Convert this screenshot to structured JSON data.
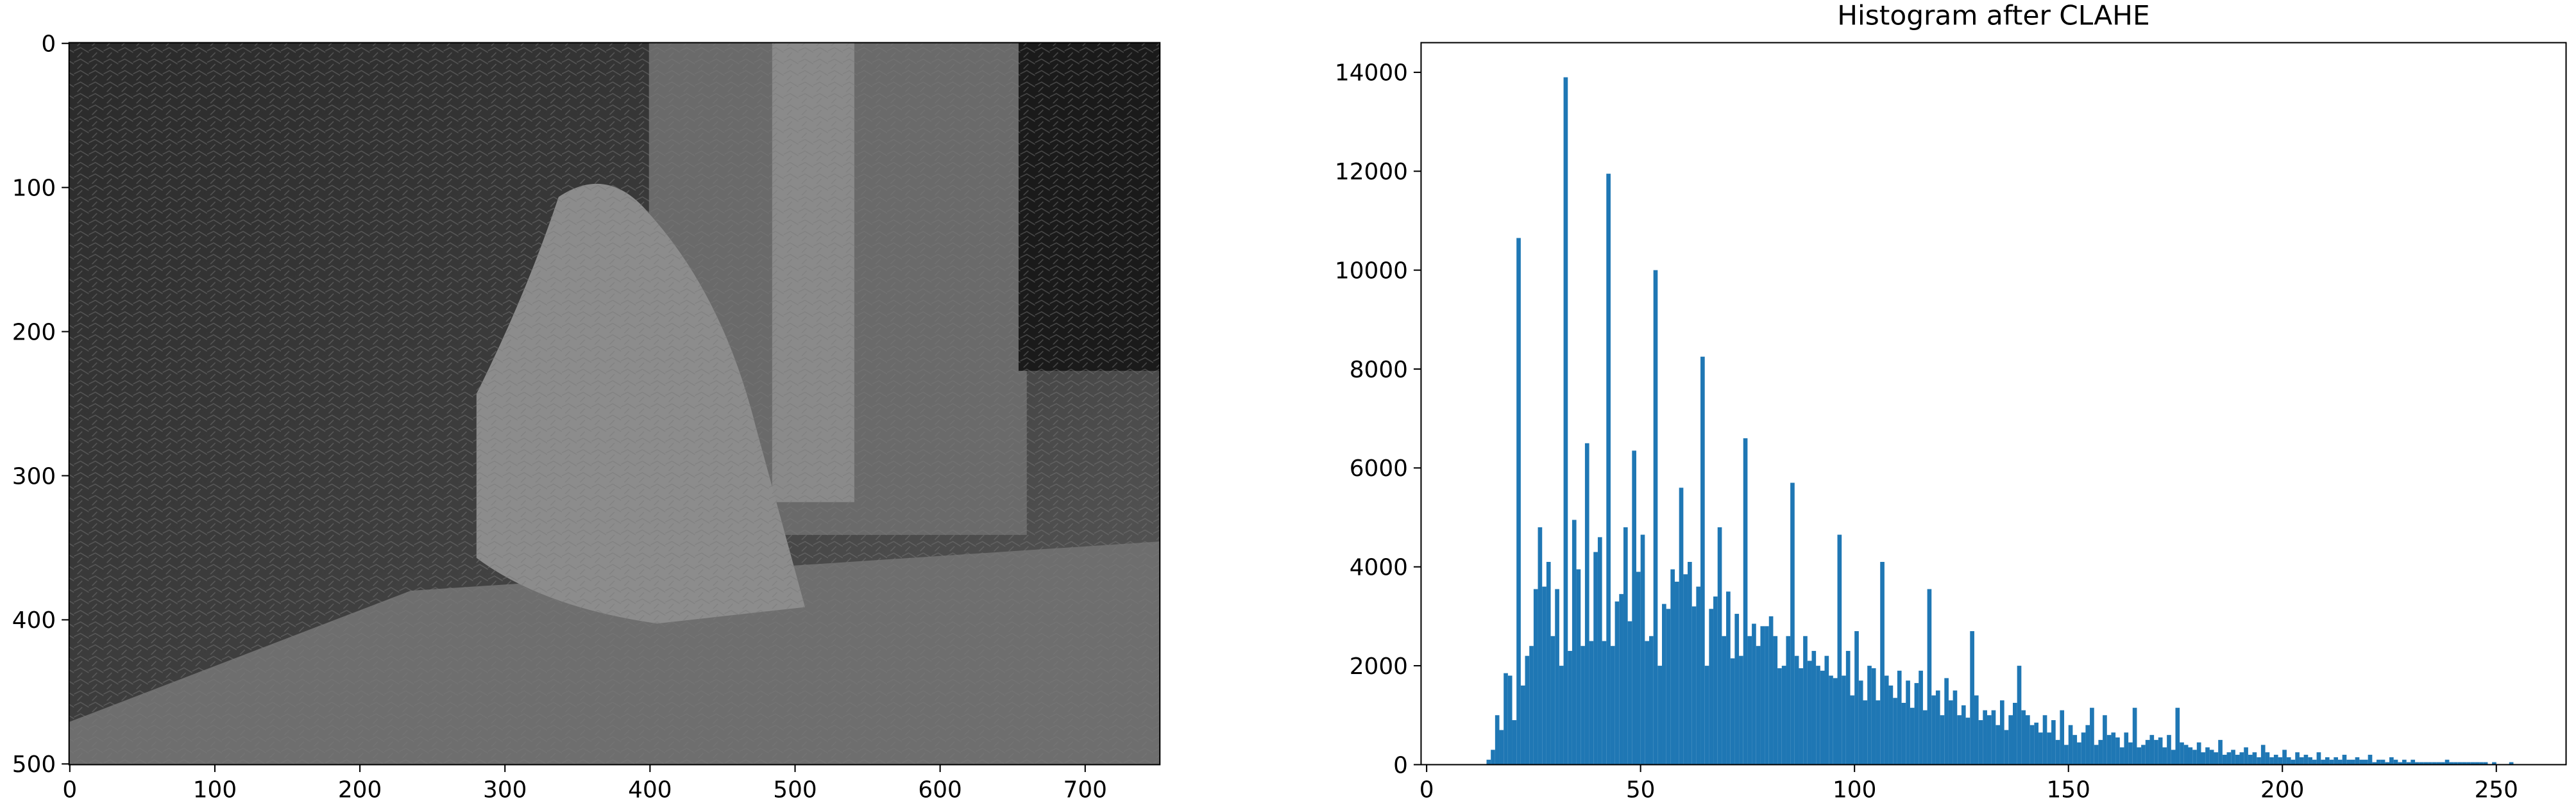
{
  "chart_data": [
    {
      "type": "image",
      "xlim": [
        -0.5,
        751.5
      ],
      "ylim": [
        500.5,
        -0.5
      ],
      "xticks": [
        0,
        100,
        200,
        300,
        400,
        500,
        600,
        700
      ],
      "yticks": [
        0,
        100,
        200,
        300,
        400,
        500
      ]
    },
    {
      "type": "histogram",
      "title": "Histogram after CLAHE",
      "color": "#1f77b4",
      "xlim": [
        -1.3,
        266.3
      ],
      "ylim": [
        0,
        14600
      ],
      "xticks": [
        0,
        50,
        100,
        150,
        200,
        250
      ],
      "yticks": [
        0,
        2000,
        4000,
        6000,
        8000,
        10000,
        12000,
        14000
      ],
      "bins": [
        0,
        1,
        2,
        3,
        4,
        5,
        6,
        7,
        8,
        9,
        10,
        11,
        12,
        13,
        14,
        15,
        16,
        17,
        18,
        19,
        20,
        21,
        22,
        23,
        24,
        25,
        26,
        27,
        28,
        29,
        30,
        31,
        32,
        33,
        34,
        35,
        36,
        37,
        38,
        39,
        40,
        41,
        42,
        43,
        44,
        45,
        46,
        47,
        48,
        49,
        50,
        51,
        52,
        53,
        54,
        55,
        56,
        57,
        58,
        59,
        60,
        61,
        62,
        63,
        64,
        65,
        66,
        67,
        68,
        69,
        70,
        71,
        72,
        73,
        74,
        75,
        76,
        77,
        78,
        79,
        80,
        81,
        82,
        83,
        84,
        85,
        86,
        87,
        88,
        89,
        90,
        91,
        92,
        93,
        94,
        95,
        96,
        97,
        98,
        99,
        100,
        101,
        102,
        103,
        104,
        105,
        106,
        107,
        108,
        109,
        110,
        111,
        112,
        113,
        114,
        115,
        116,
        117,
        118,
        119,
        120,
        121,
        122,
        123,
        124,
        125,
        126,
        127,
        128,
        129,
        130,
        131,
        132,
        133,
        134,
        135,
        136,
        137,
        138,
        139,
        140,
        141,
        142,
        143,
        144,
        145,
        146,
        147,
        148,
        149,
        150,
        151,
        152,
        153,
        154,
        155,
        156,
        157,
        158,
        159,
        160,
        161,
        162,
        163,
        164,
        165,
        166,
        167,
        168,
        169,
        170,
        171,
        172,
        173,
        174,
        175,
        176,
        177,
        178,
        179,
        180,
        181,
        182,
        183,
        184,
        185,
        186,
        187,
        188,
        189,
        190,
        191,
        192,
        193,
        194,
        195,
        196,
        197,
        198,
        199,
        200,
        201,
        202,
        203,
        204,
        205,
        206,
        207,
        208,
        209,
        210,
        211,
        212,
        213,
        214,
        215,
        216,
        217,
        218,
        219,
        220,
        221,
        222,
        223,
        224,
        225,
        226,
        227,
        228,
        229,
        230,
        231,
        232,
        233,
        234,
        235,
        236,
        237,
        238,
        239,
        240,
        241,
        242,
        243,
        244,
        245,
        246,
        247,
        248,
        249,
        250,
        251,
        252,
        253,
        254,
        255,
        256
      ],
      "counts": [
        0,
        0,
        0,
        0,
        0,
        0,
        0,
        0,
        0,
        0,
        0,
        0,
        0,
        0,
        100,
        300,
        1000,
        700,
        1850,
        1800,
        900,
        10650,
        1600,
        2200,
        2400,
        3550,
        4800,
        3600,
        4100,
        2600,
        3550,
        2000,
        13900,
        2300,
        4950,
        3950,
        2400,
        6500,
        2500,
        4300,
        4600,
        2500,
        11950,
        2400,
        3300,
        3450,
        4800,
        2900,
        6350,
        3900,
        4650,
        2500,
        2600,
        10000,
        2000,
        3250,
        3150,
        3950,
        3700,
        5600,
        3850,
        4100,
        3200,
        3600,
        8250,
        2000,
        3150,
        3400,
        4800,
        2600,
        3500,
        2150,
        3050,
        2200,
        6600,
        2600,
        2850,
        2400,
        2800,
        2800,
        3000,
        2600,
        1950,
        2000,
        2600,
        5700,
        2200,
        1950,
        2600,
        2100,
        2300,
        2000,
        1900,
        2200,
        1800,
        1750,
        4650,
        1800,
        2300,
        1400,
        2700,
        1700,
        1300,
        2000,
        1950,
        1300,
        4100,
        1800,
        1600,
        1350,
        1900,
        1250,
        1700,
        1150,
        1650,
        1900,
        1100,
        3550,
        1400,
        1500,
        1000,
        1750,
        1300,
        1500,
        1000,
        1200,
        950,
        2700,
        1400,
        900,
        1100,
        1000,
        1100,
        800,
        1300,
        700,
        1000,
        1250,
        2000,
        1100,
        1000,
        800,
        850,
        650,
        1000,
        650,
        900,
        500,
        1100,
        400,
        800,
        600,
        450,
        650,
        800,
        1150,
        400,
        500,
        1000,
        600,
        650,
        550,
        350,
        650,
        450,
        1150,
        350,
        400,
        500,
        600,
        500,
        550,
        350,
        600,
        300,
        1150,
        450,
        400,
        350,
        300,
        450,
        250,
        350,
        300,
        250,
        500,
        200,
        250,
        300,
        200,
        250,
        350,
        200,
        250,
        150,
        400,
        250,
        150,
        200,
        150,
        300,
        150,
        100,
        250,
        150,
        200,
        150,
        100,
        250,
        100,
        150,
        100,
        150,
        100,
        200,
        100,
        100,
        150,
        100,
        100,
        200,
        50,
        100,
        100,
        50,
        150,
        100,
        50,
        100,
        50,
        100,
        50,
        50,
        50,
        50,
        50,
        50,
        50,
        100,
        50,
        50,
        50,
        50,
        50,
        50,
        50,
        50,
        50,
        0,
        50,
        0,
        0,
        0,
        50,
        0,
        0
      ]
    }
  ]
}
